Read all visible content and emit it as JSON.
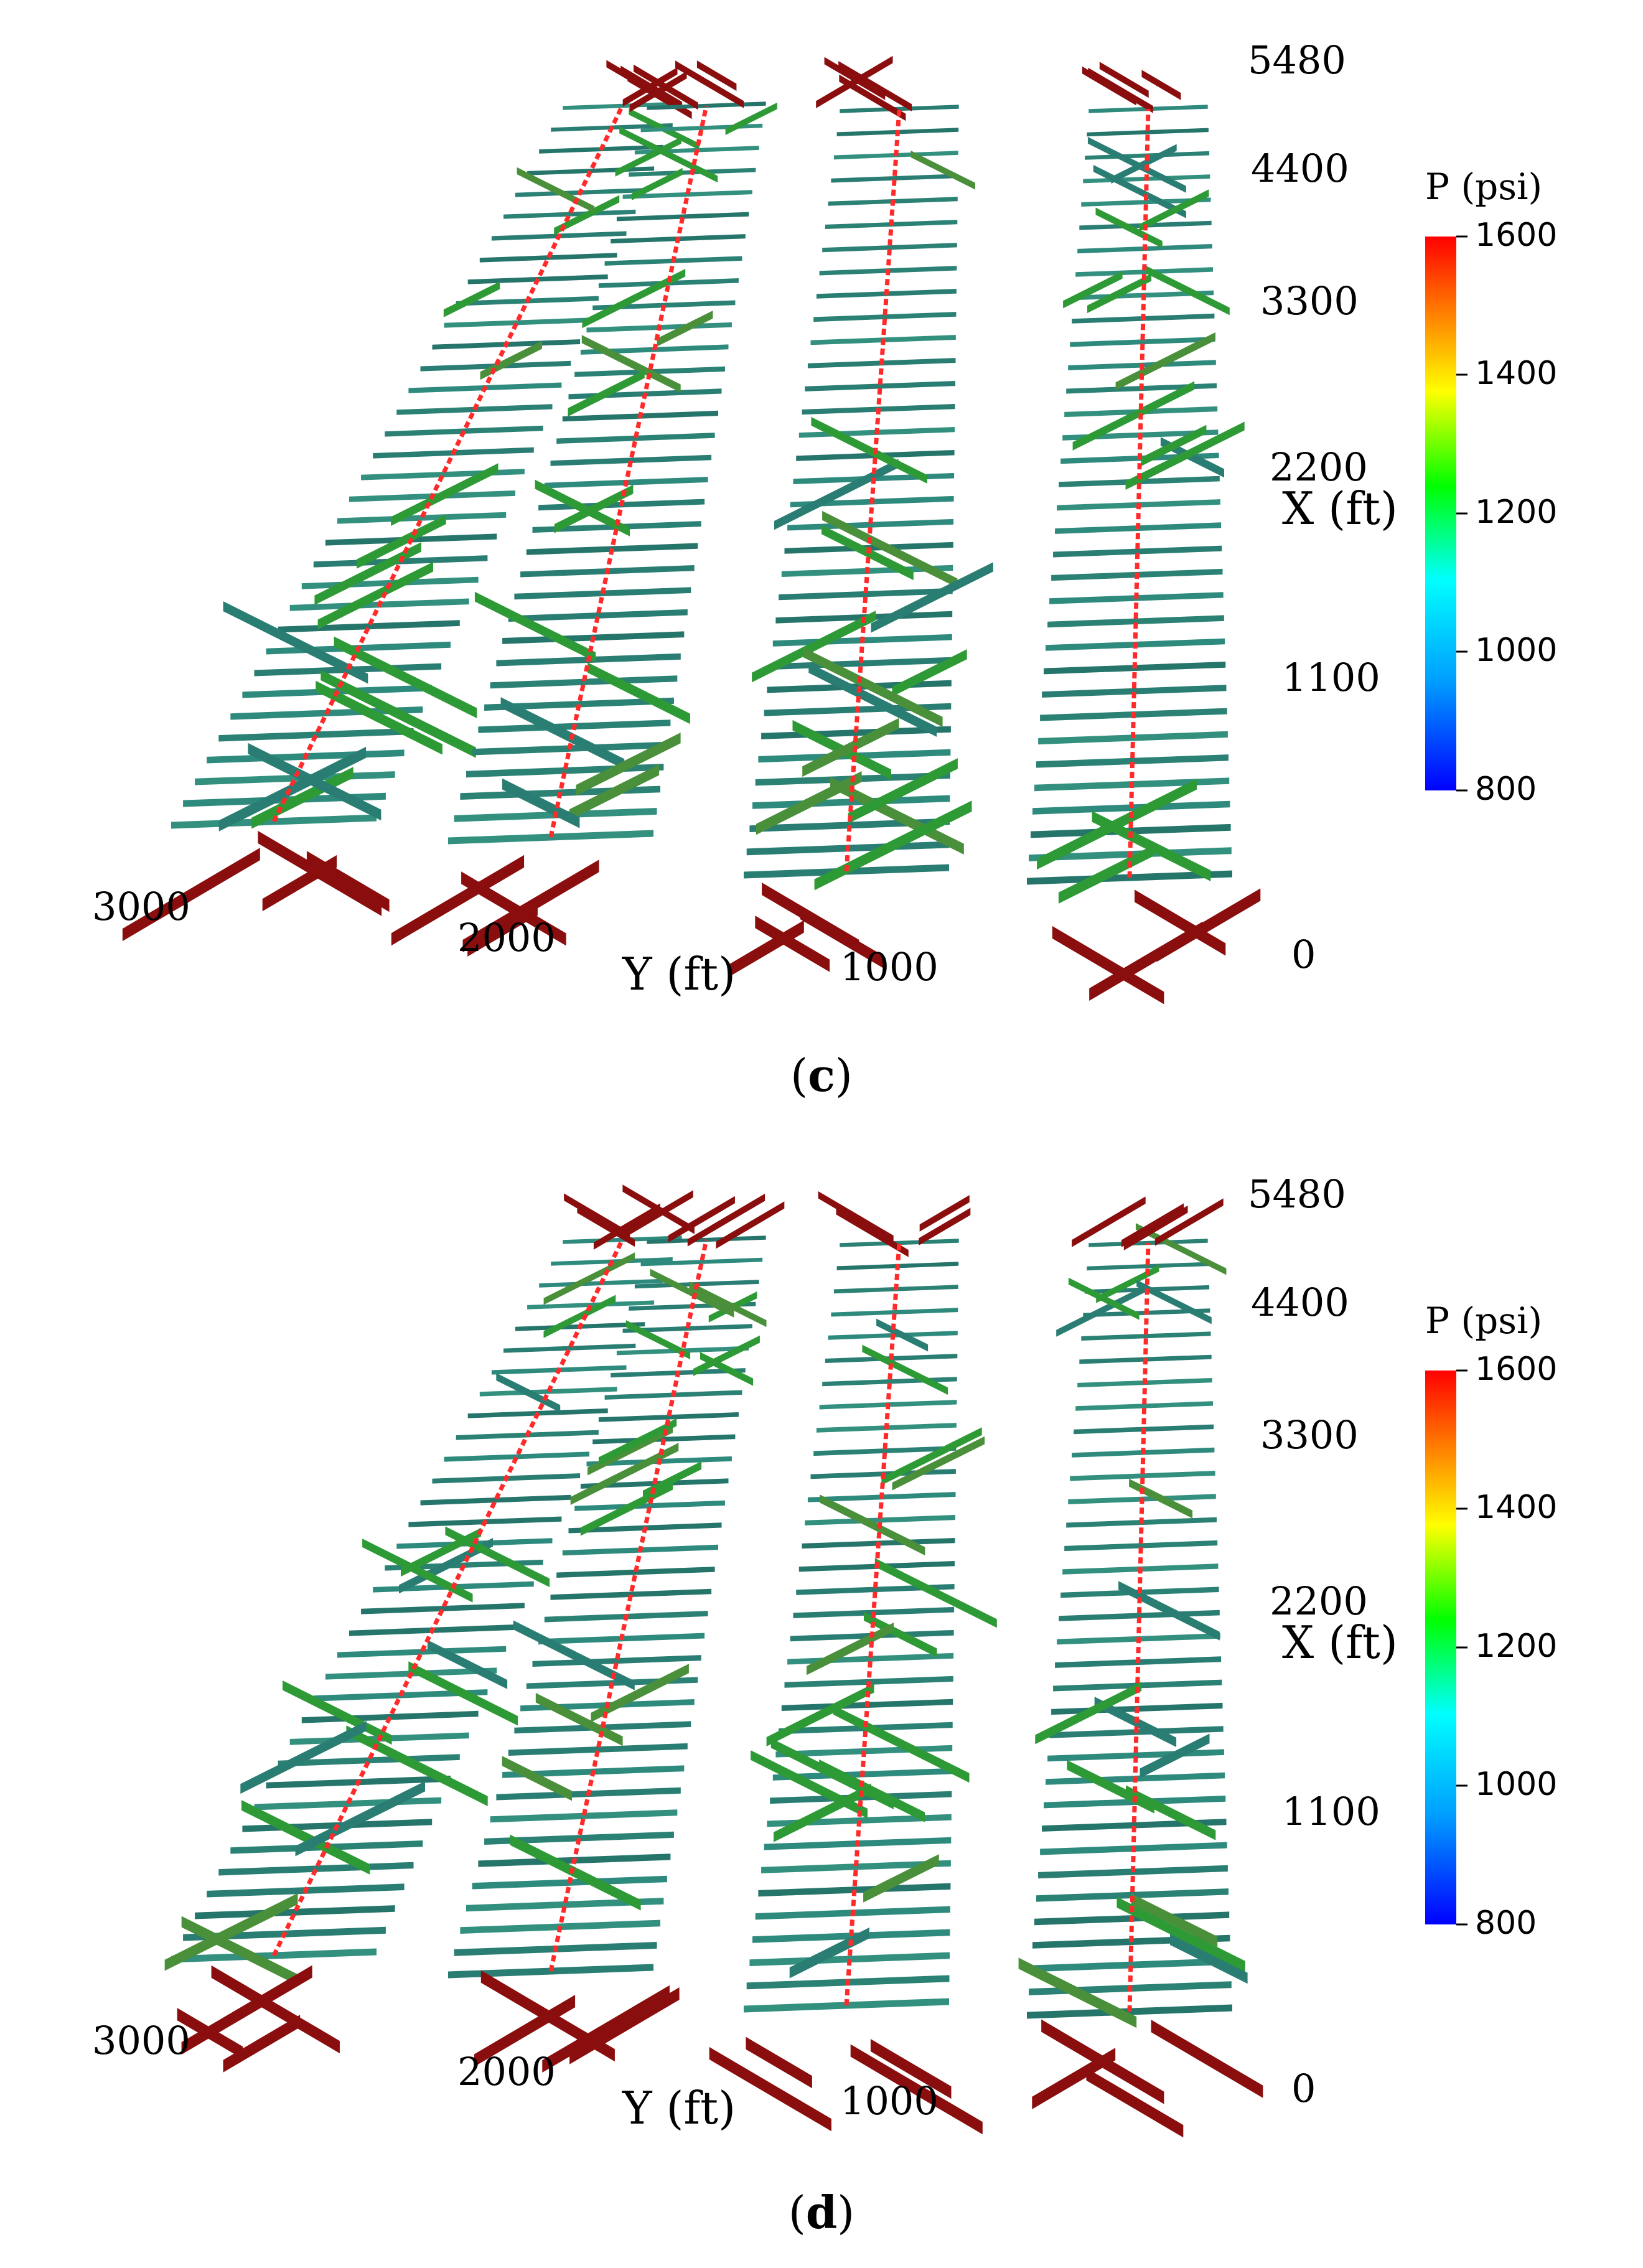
{
  "chart_data": [
    {
      "type": "3d-fracture-pressure-map",
      "panel_label": "c",
      "xlabel": "X (ft)",
      "ylabel": "Y (ft)",
      "x_ticks": [
        "5480",
        "4400",
        "3300",
        "2200",
        "1100"
      ],
      "y_ticks": [
        "3000",
        "2000",
        "1000",
        "0"
      ],
      "xlim": [
        0,
        5480
      ],
      "ylim": [
        0,
        3000
      ],
      "colorbar": {
        "title": "P (psi)",
        "range": [
          800,
          1600
        ],
        "ticks": [
          "1600",
          "1400",
          "1200",
          "1000",
          "800"
        ],
        "colors": [
          "#0000ff",
          "#00a0ff",
          "#00ffff",
          "#00ff00",
          "#ffff00",
          "#ff8000",
          "#ff0000"
        ]
      },
      "wells": 4,
      "fracture_pressure_colors": {
        "matrix_connected": "#2a7d72",
        "mid": "#2e9a36",
        "high": "#8a0e0e"
      }
    },
    {
      "type": "3d-fracture-pressure-map",
      "panel_label": "d",
      "xlabel": "X (ft)",
      "ylabel": "Y (ft)",
      "x_ticks": [
        "5480",
        "4400",
        "3300",
        "2200",
        "1100"
      ],
      "y_ticks": [
        "3000",
        "2000",
        "1000",
        "0"
      ],
      "xlim": [
        0,
        5480
      ],
      "ylim": [
        0,
        3000
      ],
      "colorbar": {
        "title": "P (psi)",
        "range": [
          800,
          1600
        ],
        "ticks": [
          "1600",
          "1400",
          "1200",
          "1000",
          "800"
        ],
        "colors": [
          "#0000ff",
          "#00a0ff",
          "#00ffff",
          "#00ff00",
          "#ffff00",
          "#ff8000",
          "#ff0000"
        ]
      },
      "wells": 4,
      "fracture_pressure_colors": {
        "matrix_connected": "#2a7d72",
        "mid": "#2e9a36",
        "high": "#8a0e0e"
      }
    }
  ]
}
